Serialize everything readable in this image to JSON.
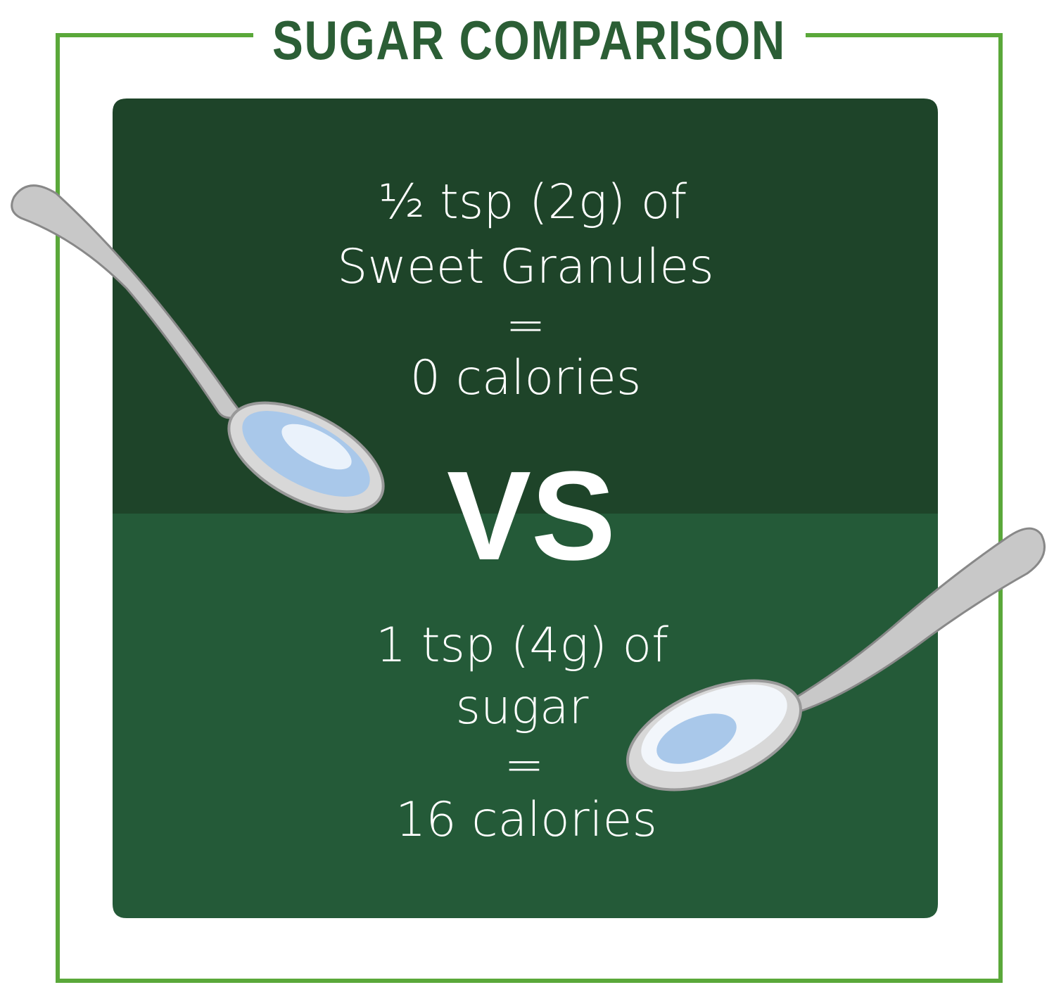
{
  "header": {
    "title": "SUGAR COMPARISON"
  },
  "top": {
    "lines": [
      "½ tsp (2g) of",
      "Sweet Granules",
      "=",
      "0 calories"
    ]
  },
  "divider": "VS",
  "bottom": {
    "lines": [
      "1 tsp (4g) of",
      "sugar",
      "=",
      "16 calories"
    ]
  }
}
